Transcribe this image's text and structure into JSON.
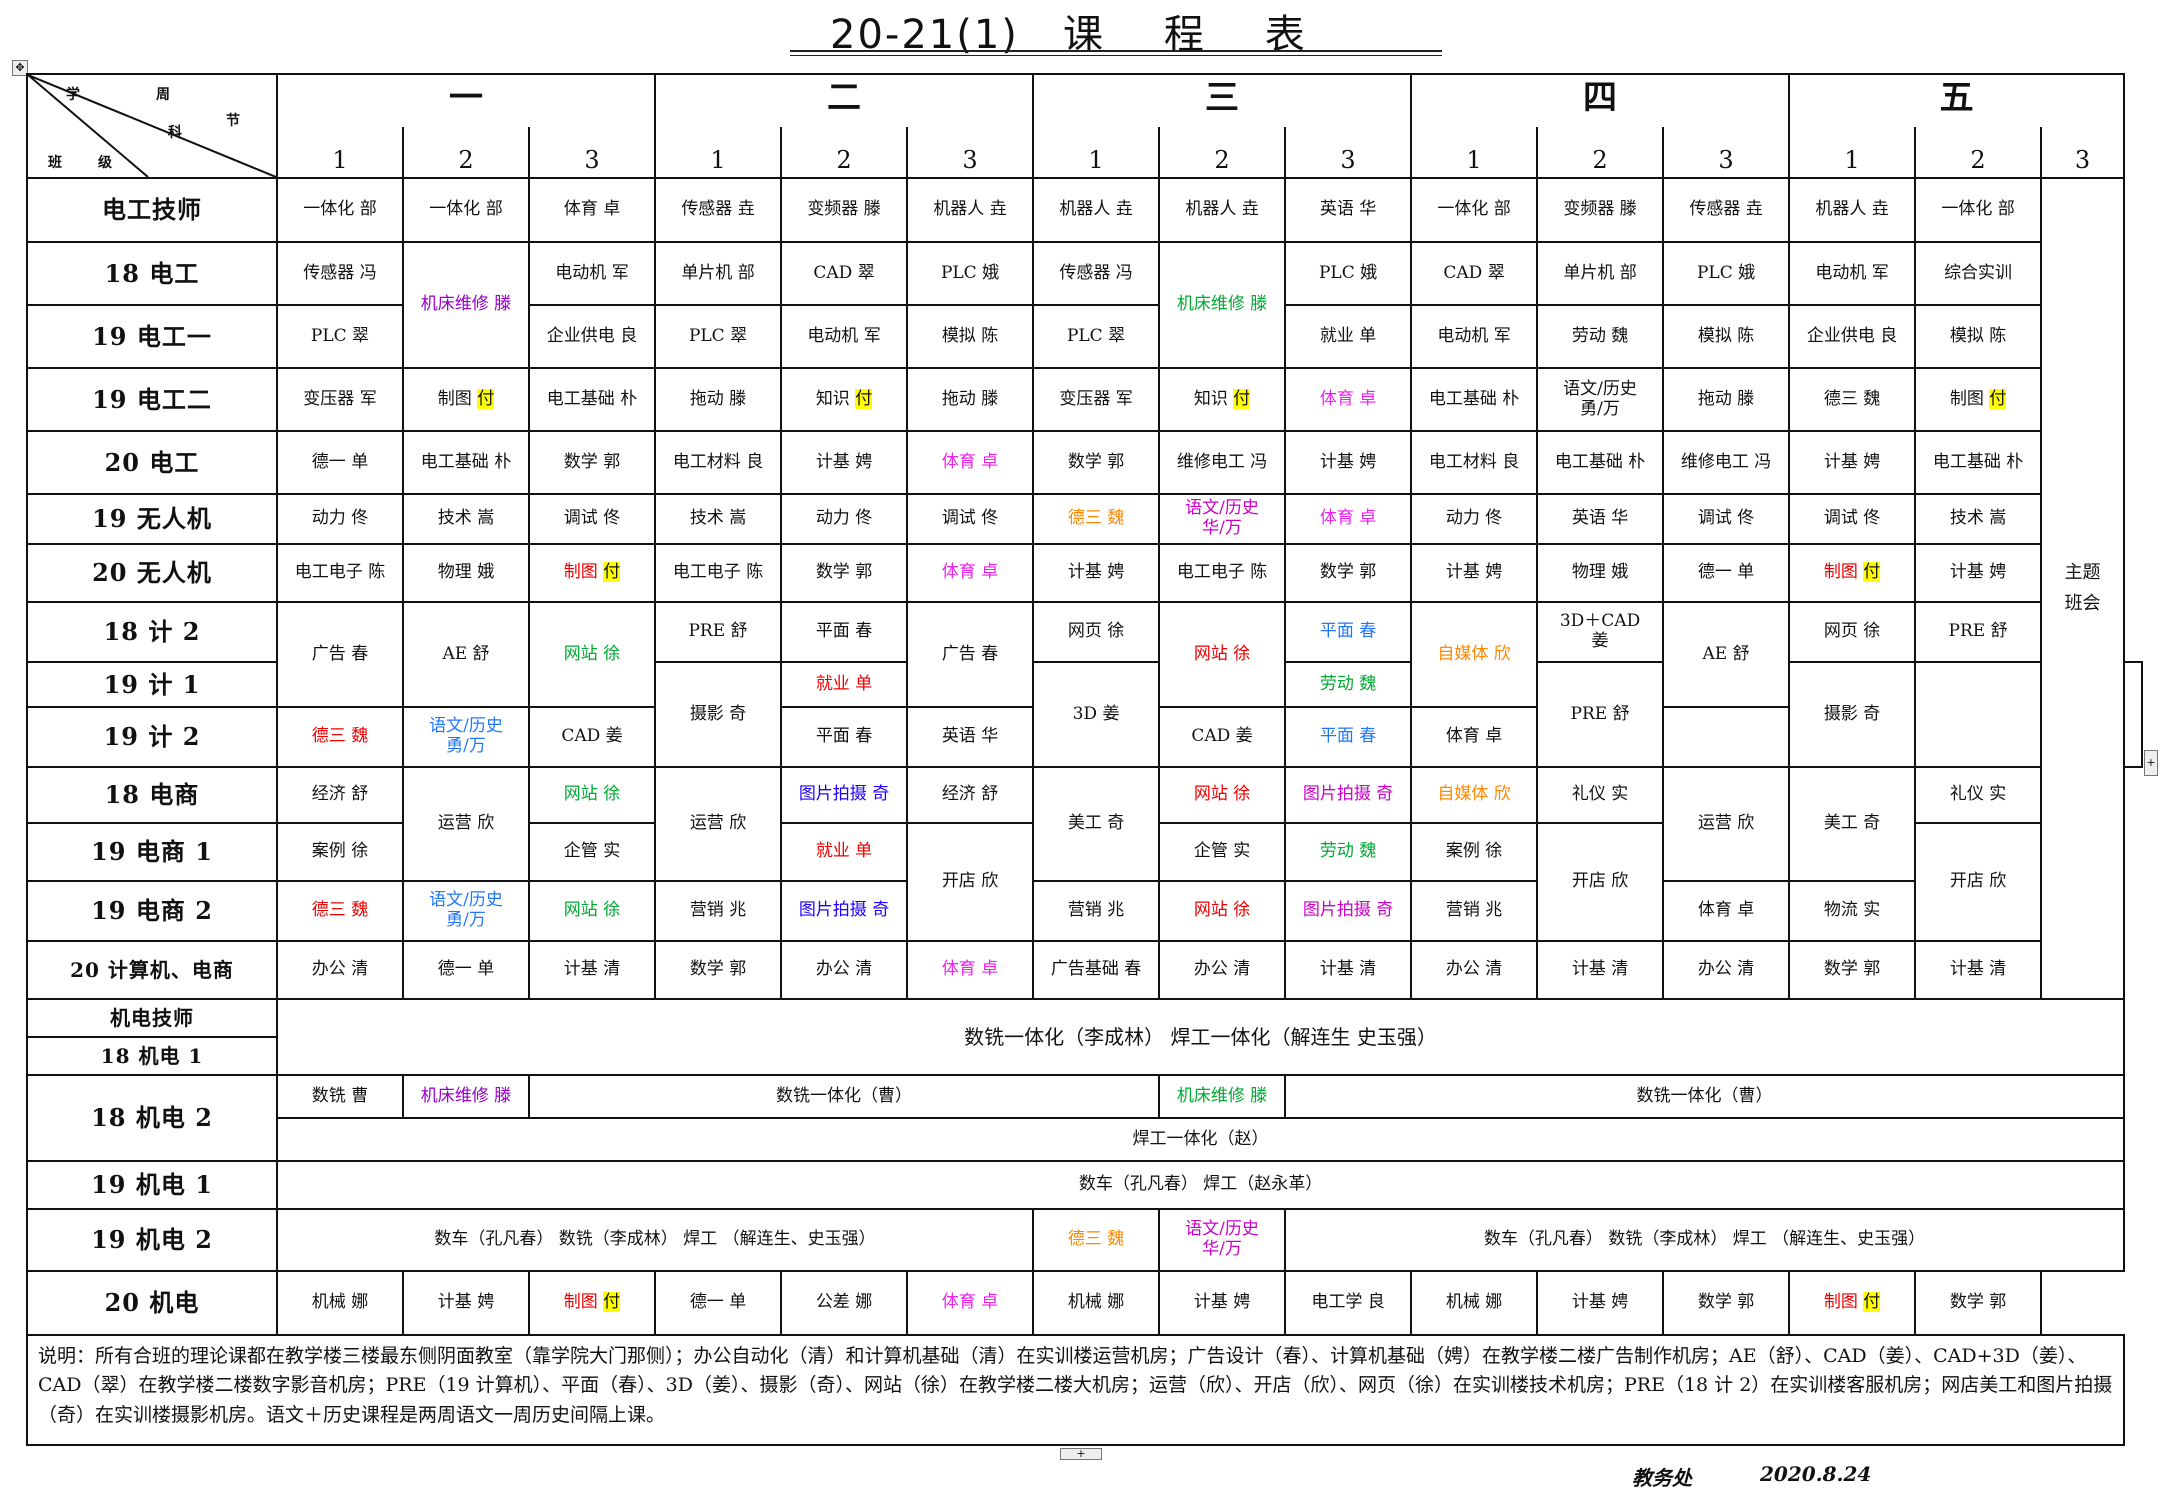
{
  "title": "20-21(1)   课    程    表",
  "corner": {
    "zhou": "周",
    "jie": "节",
    "xue": "学",
    "ke": "科",
    "ban": "班",
    "ji": "级"
  },
  "days": [
    "一",
    "二",
    "三",
    "四",
    "五"
  ],
  "periods": [
    "1",
    "2",
    "3"
  ],
  "rows": {
    "r0": {
      "c": "电工技师",
      "v": [
        "一体化 部",
        "一体化 部",
        "体育 卓",
        "传感器 垚",
        "变频器 滕",
        "机器人 垚",
        "机器人 垚",
        "机器人 垚",
        "英语 华",
        "一体化 部",
        "变频器 滕",
        "传感器 垚",
        "机器人 垚",
        "一体化 部"
      ]
    },
    "r1": {
      "c": "18 电工",
      "v": [
        "传感器 冯",
        "机床维修 滕",
        "电动机 军",
        "单片机 部",
        "CAD 翠",
        "PLC 娥",
        "传感器 冯",
        "机床维修 滕",
        "PLC 娥",
        "CAD 翠",
        "单片机 部",
        "PLC 娥",
        "电动机 军",
        "综合实训"
      ]
    },
    "r2": {
      "c": "19 电工一",
      "v": [
        "PLC 翠",
        "企业供电 良",
        "PLC 翠",
        "电动机 军",
        "模拟   陈",
        "PLC 翠",
        "就业 单",
        "电动机 军",
        "劳动 魏",
        "模拟 陈",
        "企业供电 良",
        "模拟 陈"
      ]
    },
    "r3": {
      "c": "19 电工二",
      "v": [
        "变压器 军",
        "制图",
        "付",
        "电工基础 朴",
        "拖动 滕",
        "知识",
        "付",
        "拖动 滕",
        "变压器 军",
        "知识",
        "付",
        "体育 卓",
        "电工基础 朴",
        "语文/历史",
        "勇/万",
        "拖动 滕",
        "德三 魏",
        "制图",
        "付"
      ]
    },
    "r4": {
      "c": "20 电工",
      "v": [
        "德一 单",
        "电工基础 朴",
        "数学 郭",
        "电工材料 良",
        "计基 娉",
        "体育 卓",
        "数学 郭",
        "维修电工 冯",
        "计基 娉",
        "电工材料 良",
        "电工基础 朴",
        "维修电工 冯",
        "计基 娉",
        "电工基础 朴"
      ]
    },
    "r5": {
      "c": "19 无人机",
      "v": [
        "动力 佟",
        "技术 嵩",
        "调试 佟",
        "技术 嵩",
        "动力 佟",
        "调试 佟",
        "德三 魏",
        "语文/历史",
        "华/万",
        "体育 卓",
        "动力 佟",
        "英语 华",
        "调试 佟",
        "调试 佟",
        "技术 嵩"
      ]
    },
    "r6": {
      "c": "20 无人机",
      "v": [
        "电工电子 陈",
        "物理 娥",
        "制图",
        "付",
        "电工电子 陈",
        "数学 郭",
        "体育 卓",
        "计基 娉",
        "电工电子 陈",
        "数学 郭",
        "计基 娉",
        "物理 娥",
        "德一 单",
        "制图",
        "付",
        "计基 娉"
      ]
    },
    "r7": {
      "c": "18 计 2",
      "v": [
        "广告 春",
        "AE 舒",
        "网站 徐",
        "PRE 舒",
        "平面 春",
        "广告 春",
        "网页 徐",
        "网站 徐",
        "平面 春",
        "自媒体 欣",
        "3D＋CAD",
        "姜",
        "AE 舒",
        "网页 徐",
        "PRE 舒"
      ]
    },
    "r8": {
      "c": "19 计 1",
      "v": [
        "摄影 奇",
        "就业 单",
        "3D 姜",
        "劳动 魏",
        "PRE 舒",
        "摄影 奇"
      ]
    },
    "r9": {
      "c": "19 计 2",
      "v": [
        "德三 魏",
        "语文/历史",
        "勇/万",
        "CAD 姜",
        "平面 春",
        "英语 华",
        "CAD 姜",
        "平面 春",
        "体育 卓",
        "PRE 舒",
        "3D 姜"
      ]
    },
    "r10": {
      "c": "18 电商",
      "v": [
        "经济 舒",
        "运营 欣",
        "网站 徐",
        "运营 欣",
        "图片拍摄 奇",
        "经济 舒",
        "美工 奇",
        "网站 徐",
        "图片拍摄 奇",
        "自媒体 欣",
        "礼仪 实",
        "运营 欣",
        "美工 奇",
        "礼仪 实"
      ]
    },
    "r11": {
      "c": "19 电商 1",
      "v": [
        "案例 徐",
        "企管 实",
        "就业 单",
        "开店 欣",
        "企管 实",
        "劳动 魏",
        "案例 徐",
        "开店 欣",
        "开店 欣"
      ]
    },
    "r12": {
      "c": "19 电商 2",
      "v": [
        "德三 魏",
        "语文/历史",
        "勇/万",
        "网站 徐",
        "营销 兆",
        "图片拍摄 奇",
        "营销 兆",
        "网站 徐",
        "图片拍摄 奇",
        "营销 兆",
        "体育 卓",
        "物流 实"
      ]
    },
    "r13": {
      "c": "20 计算机、电商",
      "v": [
        "办公 清",
        "德一 单",
        "计基 清",
        "数学 郭",
        "办公 清",
        "体育 卓",
        "广告基础 春",
        "办公 清",
        "计基 清",
        "办公 清",
        "计基 清",
        "办公 清",
        "数学 郭",
        "计基 清"
      ]
    },
    "r14": {
      "c": "机电技师"
    },
    "r15": {
      "c": "18 机电 1",
      "span": "数铣一体化（李成林）     焊工一体化（解连生  史玉强）"
    },
    "r16": {
      "c": "18 机电 2",
      "v": [
        "数铣 曹",
        "机床维修 滕",
        "数铣一体化（曹）",
        "机床维修 滕",
        "数铣一体化（曹）"
      ],
      "span2": "焊工一体化（赵）"
    },
    "r17": {
      "c": "19 机电 1",
      "span": "数车（孔凡春）     焊工（赵永革）"
    },
    "r18": {
      "c": "19 机电 2",
      "v": [
        "数车（孔凡春）  数铣（李成林）  焊工  （解连生、史玉强）",
        "德三 魏",
        "语文/历史",
        "华/万",
        "数车（孔凡春）  数铣（李成林）  焊工  （解连生、史玉强）"
      ]
    },
    "r19": {
      "c": "20 机电",
      "v": [
        "机械 娜",
        "计基 娉",
        "制图",
        "付",
        "德一 单",
        "公差 娜",
        "体育 卓",
        "机械 娜",
        "计基 娉",
        "电工学 良",
        "机械 娜",
        "计基 娉",
        "数学 郭",
        "制图",
        "付",
        "数学 郭"
      ]
    }
  },
  "theme_class": [
    "主题",
    "班会"
  ],
  "notes": "说明：所有合班的理论课都在教学楼三楼最东侧阴面教室（靠学院大门那侧）；办公自动化（清）和计算机基础（清）在实训楼运营机房；广告设计（春）、计算机基础（娉）在教学楼二楼广告制作机房；AE（舒）、CAD（姜）、CAD+3D（姜）、CAD（翠）在教学楼二楼数字影音机房；PRE（19 计算机）、平面（春）、3D（姜）、摄影（奇）、网站（徐）在教学楼二楼大机房；运营（欣）、开店（欣）、网页（徐）在实训楼技术机房；PRE（18 计 2）在实训楼客服机房；网店美工和图片拍摄（奇）在实训楼摄影机房。语文＋历史课程是两周语文一周历史间隔上课。",
  "footer": {
    "dept": "教务处",
    "date": "2020.8.24"
  }
}
